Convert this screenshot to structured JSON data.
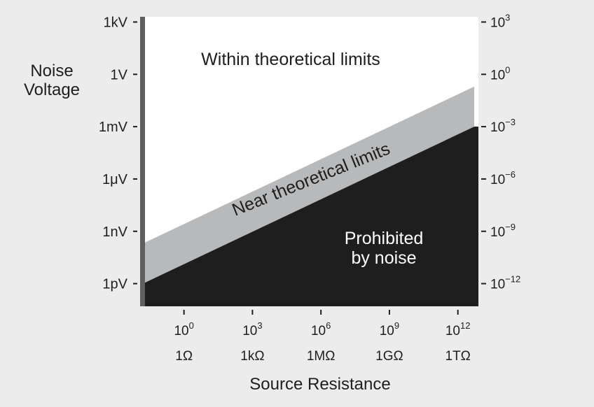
{
  "chart_data": {
    "type": "area",
    "title": "",
    "xlabel": "Source Resistance",
    "ylabel": "Noise Voltage",
    "x_scale": "log",
    "y_scale": "log",
    "xlim_exponent": [
      -1.8,
      12.9
    ],
    "ylim_exponent": [
      -13.3,
      3.3
    ],
    "x_ticks": [
      {
        "exponent": "0",
        "unit_label": "1Ω",
        "value": 0
      },
      {
        "exponent": "3",
        "unit_label": "1kΩ",
        "value": 3
      },
      {
        "exponent": "6",
        "unit_label": "1MΩ",
        "value": 6
      },
      {
        "exponent": "9",
        "unit_label": "1GΩ",
        "value": 9
      },
      {
        "exponent": "12",
        "unit_label": "1TΩ",
        "value": 12
      }
    ],
    "y_ticks_left": [
      {
        "label": "1kV",
        "value": 3
      },
      {
        "label": "1V",
        "value": 0
      },
      {
        "label": "1mV",
        "value": -3
      },
      {
        "label": "1μV",
        "value": -6
      },
      {
        "label": "1nV",
        "value": -9
      },
      {
        "label": "1pV",
        "value": -12
      }
    ],
    "y_ticks_right": [
      {
        "exponent": "3",
        "value": 3
      },
      {
        "exponent": "0",
        "value": 0
      },
      {
        "exponent": "−3",
        "value": -3
      },
      {
        "exponent": "−6",
        "value": -6
      },
      {
        "exponent": "−9",
        "value": -9
      },
      {
        "exponent": "−12",
        "value": -12
      }
    ],
    "regions": [
      {
        "name": "Within theoretical limits",
        "color": "#ffffff"
      },
      {
        "name": "Near theoretical limits",
        "color": "#b8b9bb"
      },
      {
        "name": "Prohibited by noise",
        "color": "#1e1e1e"
      }
    ],
    "prohibited_boundary": [
      {
        "x": -1.8,
        "y": -12.0
      },
      {
        "x": 12.9,
        "y": -3.0
      }
    ],
    "near_boundary": [
      {
        "x": -1.8,
        "y": -9.7
      },
      {
        "x": 12.9,
        "y": -0.7
      }
    ]
  },
  "labels": {
    "within": "Within theoretical limits",
    "near": "Near theoretical limits",
    "prohibited_line1": "Prohibited",
    "prohibited_line2": "by noise",
    "ylabel_line1": "Noise",
    "ylabel_line2": "Voltage",
    "xlabel": "Source Resistance",
    "right_base": "10",
    "bottom_base": "10"
  },
  "colors": {
    "background": "#ececec",
    "plot_white": "#ffffff",
    "near_band": "#b8b9bb",
    "prohibited": "#1e1e1e",
    "left_axis": "#5f5f5f",
    "text": "#1e1e1e"
  }
}
